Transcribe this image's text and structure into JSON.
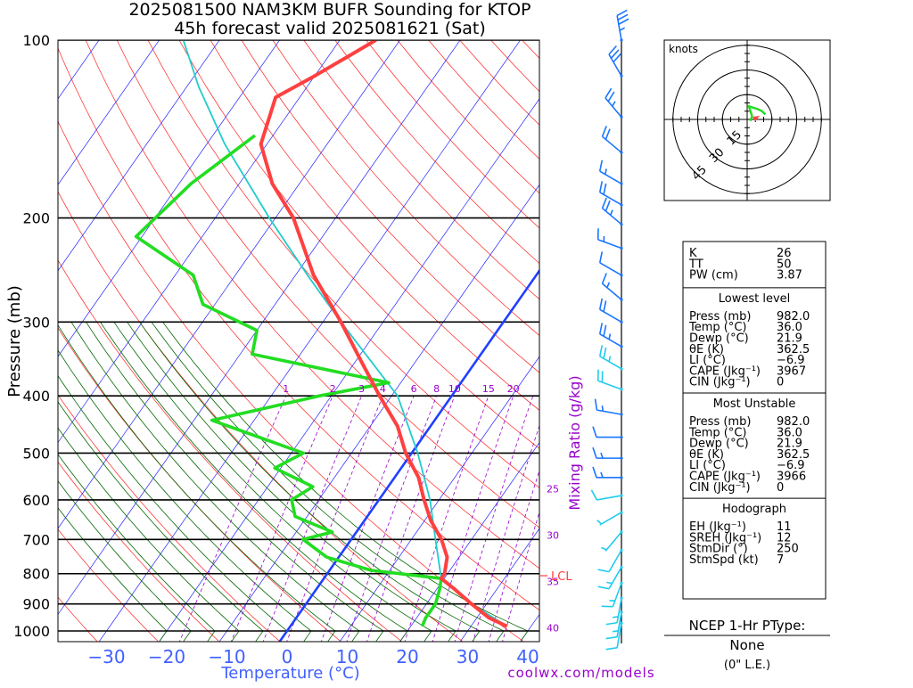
{
  "header": {
    "line1": "2025081500 NAM3KM BUFR Sounding for KTOP",
    "line2": "45h forecast valid 2025081621 (Sat)"
  },
  "colors": {
    "temperature": "#ff4040",
    "dewpoint": "#22dd22",
    "parcel": "#22cccc",
    "dry_adiabat": "#ff2020",
    "isotherm": "#2020ff",
    "moist_adiabat": "#006600",
    "mixing_ratio": "#9900cc",
    "freezing": "#2040ff",
    "axis_label": "#4060ff"
  },
  "chart_data": {
    "type": "skew-t",
    "title": "2025081500 NAM3KM BUFR Sounding for KTOP 45h forecast valid 2025081621 (Sat)",
    "xlabel": "Temperature (°C)",
    "ylabel": "Pressure (mb)",
    "x_ticks": [
      -30,
      -20,
      -10,
      0,
      10,
      20,
      30,
      40
    ],
    "y_ticks": [
      100,
      200,
      300,
      400,
      500,
      600,
      700,
      800,
      900,
      1000
    ],
    "xlim": [
      -38,
      42
    ],
    "ylim": [
      1050,
      100
    ],
    "mixing_ratio_label": "Mixing Ratio (g/kg)",
    "mixing_ratio_values": [
      1,
      2,
      3,
      4,
      6,
      8,
      10,
      15,
      20,
      25,
      30,
      35,
      40
    ],
    "lcl_label": "LCL",
    "lcl_pressure": 815,
    "series": [
      {
        "name": "temperature",
        "points": [
          [
            982,
            36
          ],
          [
            950,
            32
          ],
          [
            900,
            27.5
          ],
          [
            850,
            23
          ],
          [
            815,
            19.5
          ],
          [
            800,
            19.5
          ],
          [
            750,
            18
          ],
          [
            700,
            15
          ],
          [
            650,
            11
          ],
          [
            600,
            7.5
          ],
          [
            550,
            4
          ],
          [
            500,
            -1
          ],
          [
            450,
            -5.5
          ],
          [
            400,
            -12
          ],
          [
            350,
            -19
          ],
          [
            300,
            -27
          ],
          [
            250,
            -37
          ],
          [
            200,
            -47
          ],
          [
            175,
            -54.5
          ],
          [
            150,
            -61
          ],
          [
            125,
            -64
          ],
          [
            115,
            -60
          ],
          [
            100,
            -54
          ]
        ]
      },
      {
        "name": "dewpoint",
        "points": [
          [
            982,
            21.9
          ],
          [
            950,
            21.5
          ],
          [
            900,
            21.5
          ],
          [
            850,
            20.5
          ],
          [
            815,
            19.5
          ],
          [
            790,
            7
          ],
          [
            750,
            -2
          ],
          [
            700,
            -8
          ],
          [
            680,
            -4
          ],
          [
            640,
            -12
          ],
          [
            600,
            -14.5
          ],
          [
            570,
            -12.5
          ],
          [
            530,
            -21
          ],
          [
            500,
            -18
          ],
          [
            440,
            -37
          ],
          [
            400,
            -22
          ],
          [
            380,
            -12
          ],
          [
            340,
            -38
          ],
          [
            310,
            -40
          ],
          [
            280,
            -52
          ],
          [
            250,
            -57
          ],
          [
            215,
            -71
          ],
          [
            175,
            -68
          ],
          [
            145,
            -63
          ]
        ]
      },
      {
        "name": "parcel",
        "points": [
          [
            982,
            36
          ],
          [
            900,
            27.5
          ],
          [
            815,
            19.5
          ],
          [
            700,
            14
          ],
          [
            600,
            8.5
          ],
          [
            500,
            1
          ],
          [
            400,
            -9
          ],
          [
            300,
            -27
          ],
          [
            250,
            -38
          ],
          [
            200,
            -51
          ],
          [
            150,
            -67
          ],
          [
            120,
            -78
          ],
          [
            100,
            -86
          ]
        ]
      }
    ],
    "wind_barbs": [
      {
        "p": 100,
        "dir": 350,
        "kt": 35
      },
      {
        "p": 115,
        "dir": 330,
        "kt": 30
      },
      {
        "p": 135,
        "dir": 320,
        "kt": 25
      },
      {
        "p": 155,
        "dir": 310,
        "kt": 20
      },
      {
        "p": 175,
        "dir": 300,
        "kt": 15
      },
      {
        "p": 190,
        "dir": 300,
        "kt": 20
      },
      {
        "p": 205,
        "dir": 310,
        "kt": 25
      },
      {
        "p": 225,
        "dir": 290,
        "kt": 15
      },
      {
        "p": 250,
        "dir": 300,
        "kt": 10
      },
      {
        "p": 275,
        "dir": 310,
        "kt": 15
      },
      {
        "p": 300,
        "dir": 300,
        "kt": 20
      },
      {
        "p": 330,
        "dir": 300,
        "kt": 25
      },
      {
        "p": 360,
        "dir": 300,
        "kt": 25
      },
      {
        "p": 390,
        "dir": 290,
        "kt": 20
      },
      {
        "p": 430,
        "dir": 280,
        "kt": 15
      },
      {
        "p": 470,
        "dir": 270,
        "kt": 10
      },
      {
        "p": 510,
        "dir": 270,
        "kt": 15
      },
      {
        "p": 550,
        "dir": 270,
        "kt": 15
      },
      {
        "p": 590,
        "dir": 260,
        "kt": 10
      },
      {
        "p": 630,
        "dir": 240,
        "kt": 5
      },
      {
        "p": 680,
        "dir": 220,
        "kt": 5
      },
      {
        "p": 730,
        "dir": 210,
        "kt": 10
      },
      {
        "p": 780,
        "dir": 210,
        "kt": 15
      },
      {
        "p": 830,
        "dir": 200,
        "kt": 15
      },
      {
        "p": 880,
        "dir": 190,
        "kt": 15
      },
      {
        "p": 930,
        "dir": 190,
        "kt": 15
      },
      {
        "p": 970,
        "dir": 190,
        "kt": 10
      }
    ]
  },
  "hodograph": {
    "units_label": "knots",
    "ring_labels": [
      "15",
      "30",
      "45"
    ],
    "trace_kt": [
      [
        2,
        -1
      ],
      [
        3,
        2
      ],
      [
        2,
        5
      ],
      [
        1,
        8
      ],
      [
        4,
        7
      ],
      [
        7,
        6
      ],
      [
        9,
        5
      ],
      [
        11,
        3
      ]
    ]
  },
  "indices": {
    "rows": [
      {
        "label": "K",
        "value": "26"
      },
      {
        "label": "TT",
        "value": "50"
      },
      {
        "label": "PW (cm)",
        "value": "3.87"
      }
    ],
    "lowest_title": "Lowest level",
    "lowest": [
      {
        "label": "Press (mb)",
        "value": "982.0"
      },
      {
        "label": "Temp (°C)",
        "value": "36.0"
      },
      {
        "label": "Dewp (°C)",
        "value": "21.9"
      },
      {
        "label": "θE (K)",
        "value": "362.5"
      },
      {
        "label": "LI (°C)",
        "value": "−6.9"
      },
      {
        "label": "CAPE (Jkg⁻¹)",
        "value": "3967"
      },
      {
        "label": "CIN (Jkg⁻¹)",
        "value": "0"
      }
    ],
    "mu_title": "Most Unstable",
    "mu": [
      {
        "label": "Press (mb)",
        "value": "982.0"
      },
      {
        "label": "Temp (°C)",
        "value": "36.0"
      },
      {
        "label": "Dewp (°C)",
        "value": "21.9"
      },
      {
        "label": "θE (K)",
        "value": "362.5"
      },
      {
        "label": "LI (°C)",
        "value": "−6.9"
      },
      {
        "label": "CAPE (Jkg⁻¹)",
        "value": "3966"
      },
      {
        "label": "CIN (Jkg⁻¹)",
        "value": "0"
      }
    ],
    "hodo_title": "Hodograph",
    "hodo": [
      {
        "label": "EH (Jkg⁻¹)",
        "value": "11"
      },
      {
        "label": "SREH (Jkg⁻¹)",
        "value": "12"
      },
      {
        "label": "StmDir (°)",
        "value": "250"
      },
      {
        "label": "StmSpd (kt)",
        "value": "7"
      }
    ]
  },
  "ptype": {
    "title": "NCEP 1-Hr PType:",
    "value": "None",
    "note": "(0\" L.E.)"
  },
  "credit": "coolwx.com/models"
}
